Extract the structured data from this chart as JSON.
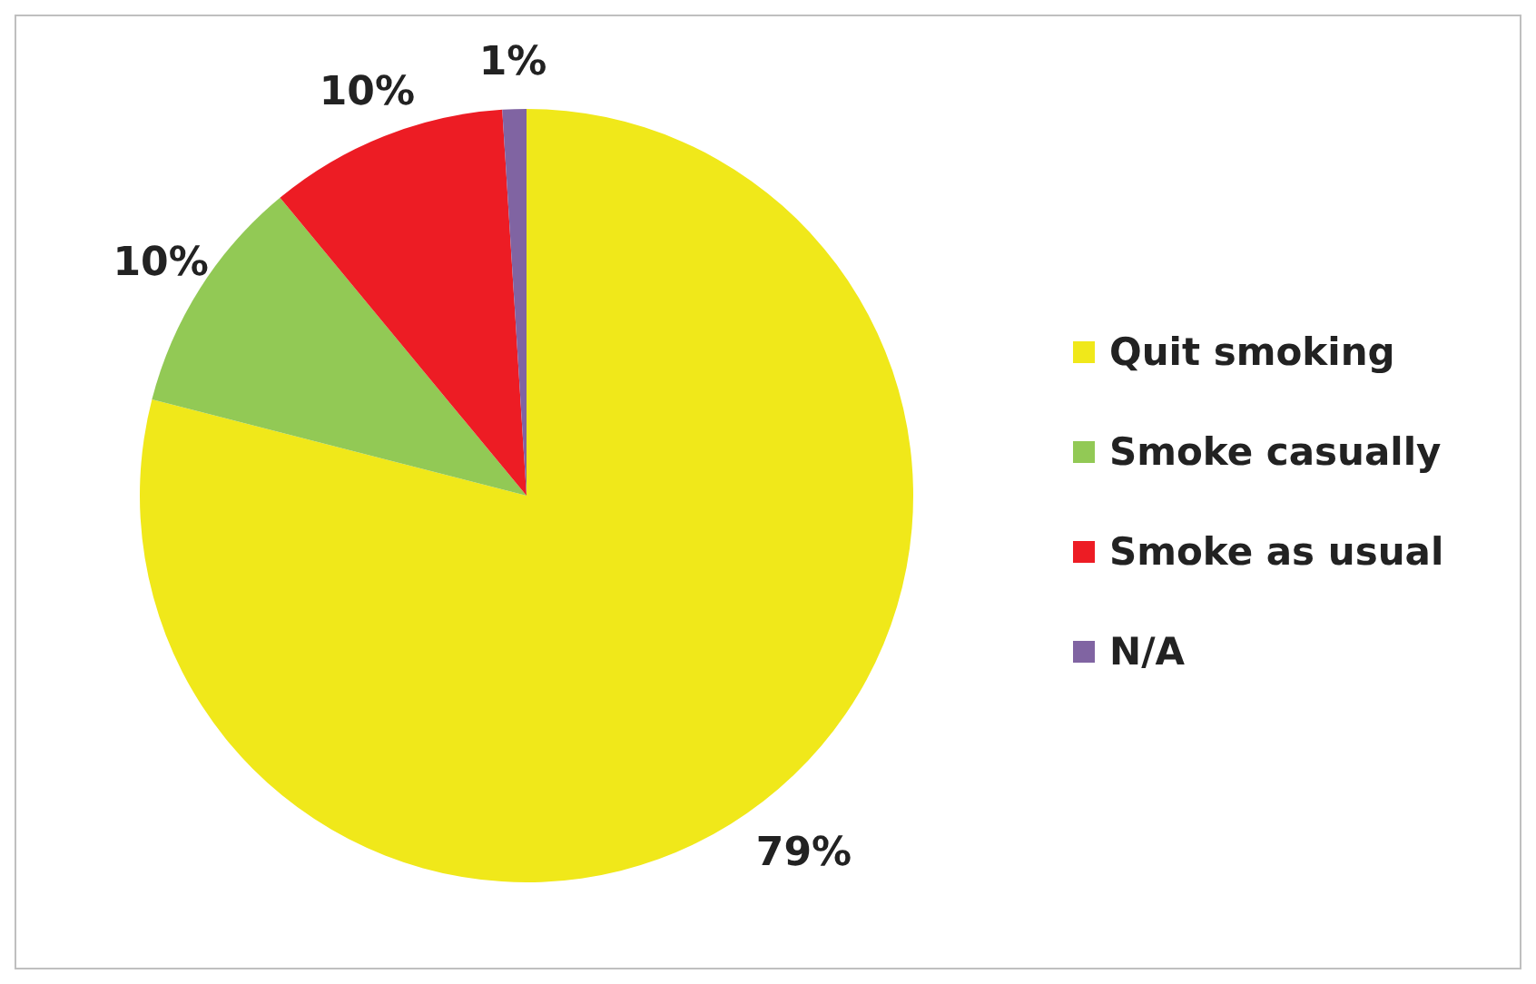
{
  "chart_data": {
    "type": "pie",
    "categories": [
      "Quit smoking",
      "Smoke casually",
      "Smoke as usual",
      "N/A"
    ],
    "values": [
      79,
      10,
      10,
      1
    ],
    "colors": [
      "#f0e81a",
      "#92c955",
      "#ed1c24",
      "#8064a2"
    ],
    "value_labels": [
      "79%",
      "10%",
      "10%",
      "1%"
    ],
    "legend": "right"
  }
}
